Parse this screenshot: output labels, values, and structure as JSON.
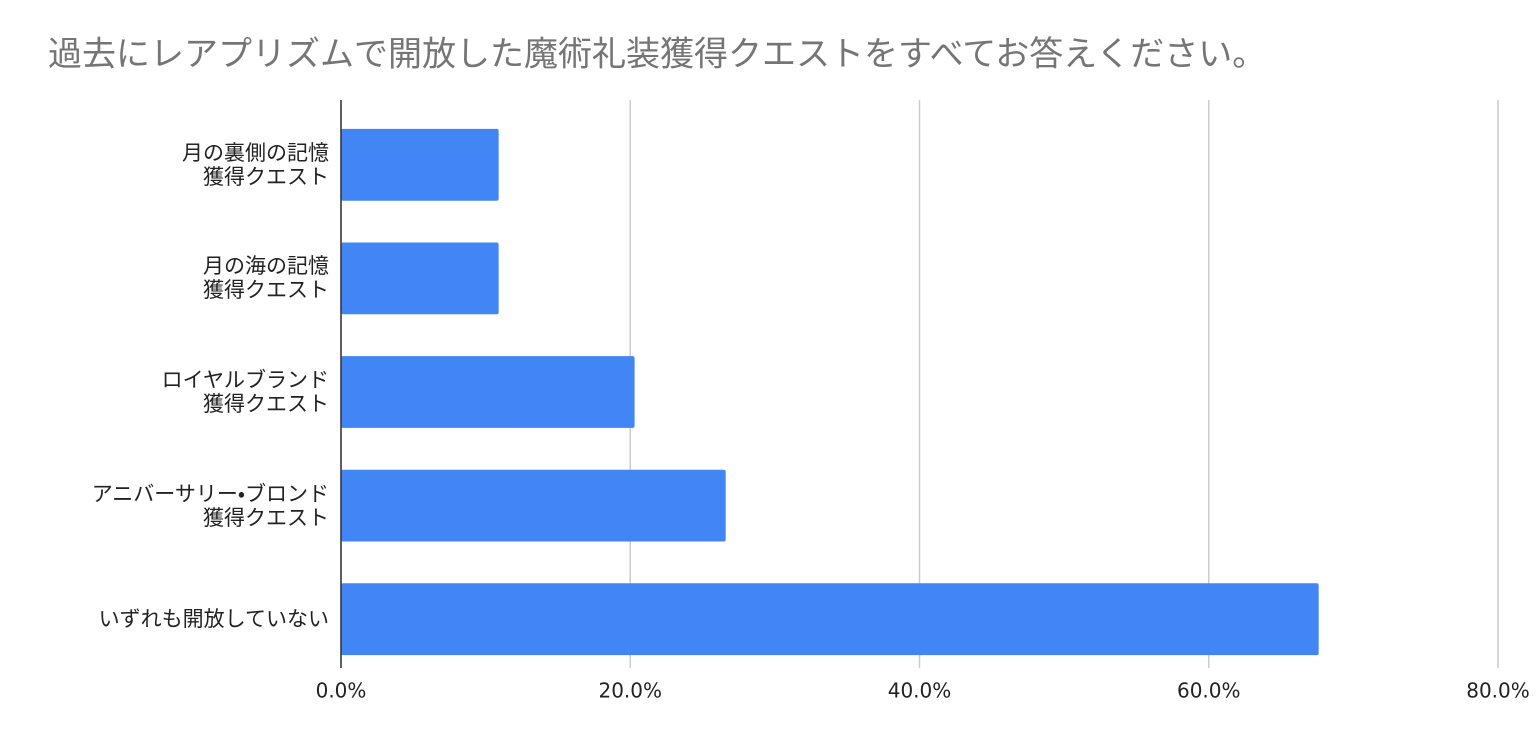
{
  "chart_data": {
    "type": "bar",
    "orientation": "horizontal",
    "title": "過去にレアプリズムで開放した魔術礼装獲得クエストをすべてお答えください。",
    "categories": [
      "月の裏側の記憶\n獲得クエスト",
      "月の海の記憶\n獲得クエスト",
      "ロイヤルブランド\n獲得クエスト",
      "アニバーサリー・ブロンド\n獲得クエスト",
      "いずれも開放していない"
    ],
    "values": [
      10.9,
      10.9,
      20.3,
      26.6,
      67.6
    ],
    "color": "#4285f4",
    "xlim": [
      0,
      80
    ],
    "xticks": [
      {
        "value": 0,
        "label": "0.0%"
      },
      {
        "value": 20,
        "label": "20.0%"
      },
      {
        "value": 40,
        "label": "40.0%"
      },
      {
        "value": 60,
        "label": "60.0%"
      },
      {
        "value": 80,
        "label": "80.0%"
      }
    ],
    "grid": true
  }
}
